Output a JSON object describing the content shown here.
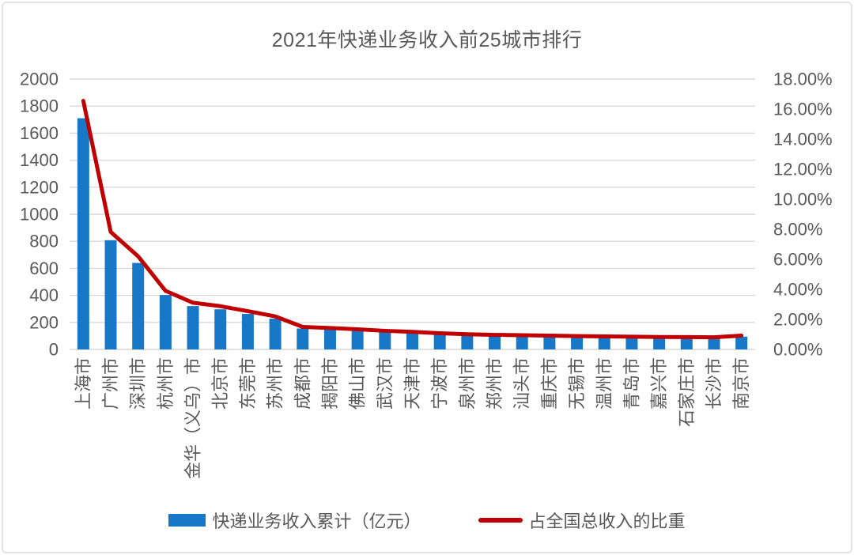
{
  "chart_data": {
    "type": "bar",
    "combo": "bar+line",
    "title": "2021年快递业务收入前25城市排行",
    "categories": [
      "上海市",
      "广州市",
      "深圳市",
      "杭州市",
      "金华（义乌）市",
      "北京市",
      "东莞市",
      "苏州市",
      "成都市",
      "揭阳市",
      "佛山市",
      "武汉市",
      "天津市",
      "宁波市",
      "泉州市",
      "郑州市",
      "汕头市",
      "重庆市",
      "无锡市",
      "温州市",
      "青岛市",
      "嘉兴市",
      "石家庄市",
      "长沙市",
      "南京市"
    ],
    "series": [
      {
        "name": "快递业务收入累计（亿元）",
        "type": "bar",
        "axis": "left",
        "color": "#1878c8",
        "values": [
          1710,
          808,
          640,
          403,
          321,
          297,
          263,
          228,
          155,
          148,
          138,
          128,
          121,
          112,
          105,
          100,
          98,
          95,
          92,
          90,
          87,
          86,
          85,
          84,
          95
        ]
      },
      {
        "name": "占全国总收入的比重",
        "type": "line",
        "axis": "right",
        "color": "#c00000",
        "values": [
          16.55,
          7.82,
          6.2,
          3.9,
          3.11,
          2.88,
          2.55,
          2.2,
          1.5,
          1.43,
          1.34,
          1.24,
          1.17,
          1.08,
          1.01,
          0.97,
          0.95,
          0.92,
          0.89,
          0.87,
          0.85,
          0.83,
          0.82,
          0.81,
          0.92
        ]
      }
    ],
    "left_axis": {
      "min": 0,
      "max": 2000,
      "step": 200,
      "ticks": [
        0,
        200,
        400,
        600,
        800,
        1000,
        1200,
        1400,
        1600,
        1800,
        2000
      ]
    },
    "right_axis": {
      "min": 0,
      "max": 18,
      "step": 2,
      "ticks": [
        "0.00%",
        "2.00%",
        "4.00%",
        "6.00%",
        "8.00%",
        "10.00%",
        "12.00%",
        "14.00%",
        "16.00%",
        "18.00%"
      ]
    },
    "grid": true,
    "gridline_color": "#d9d9d9",
    "text_color": "#595959",
    "legend_position": "bottom",
    "xlabel": "",
    "ylabel": ""
  }
}
